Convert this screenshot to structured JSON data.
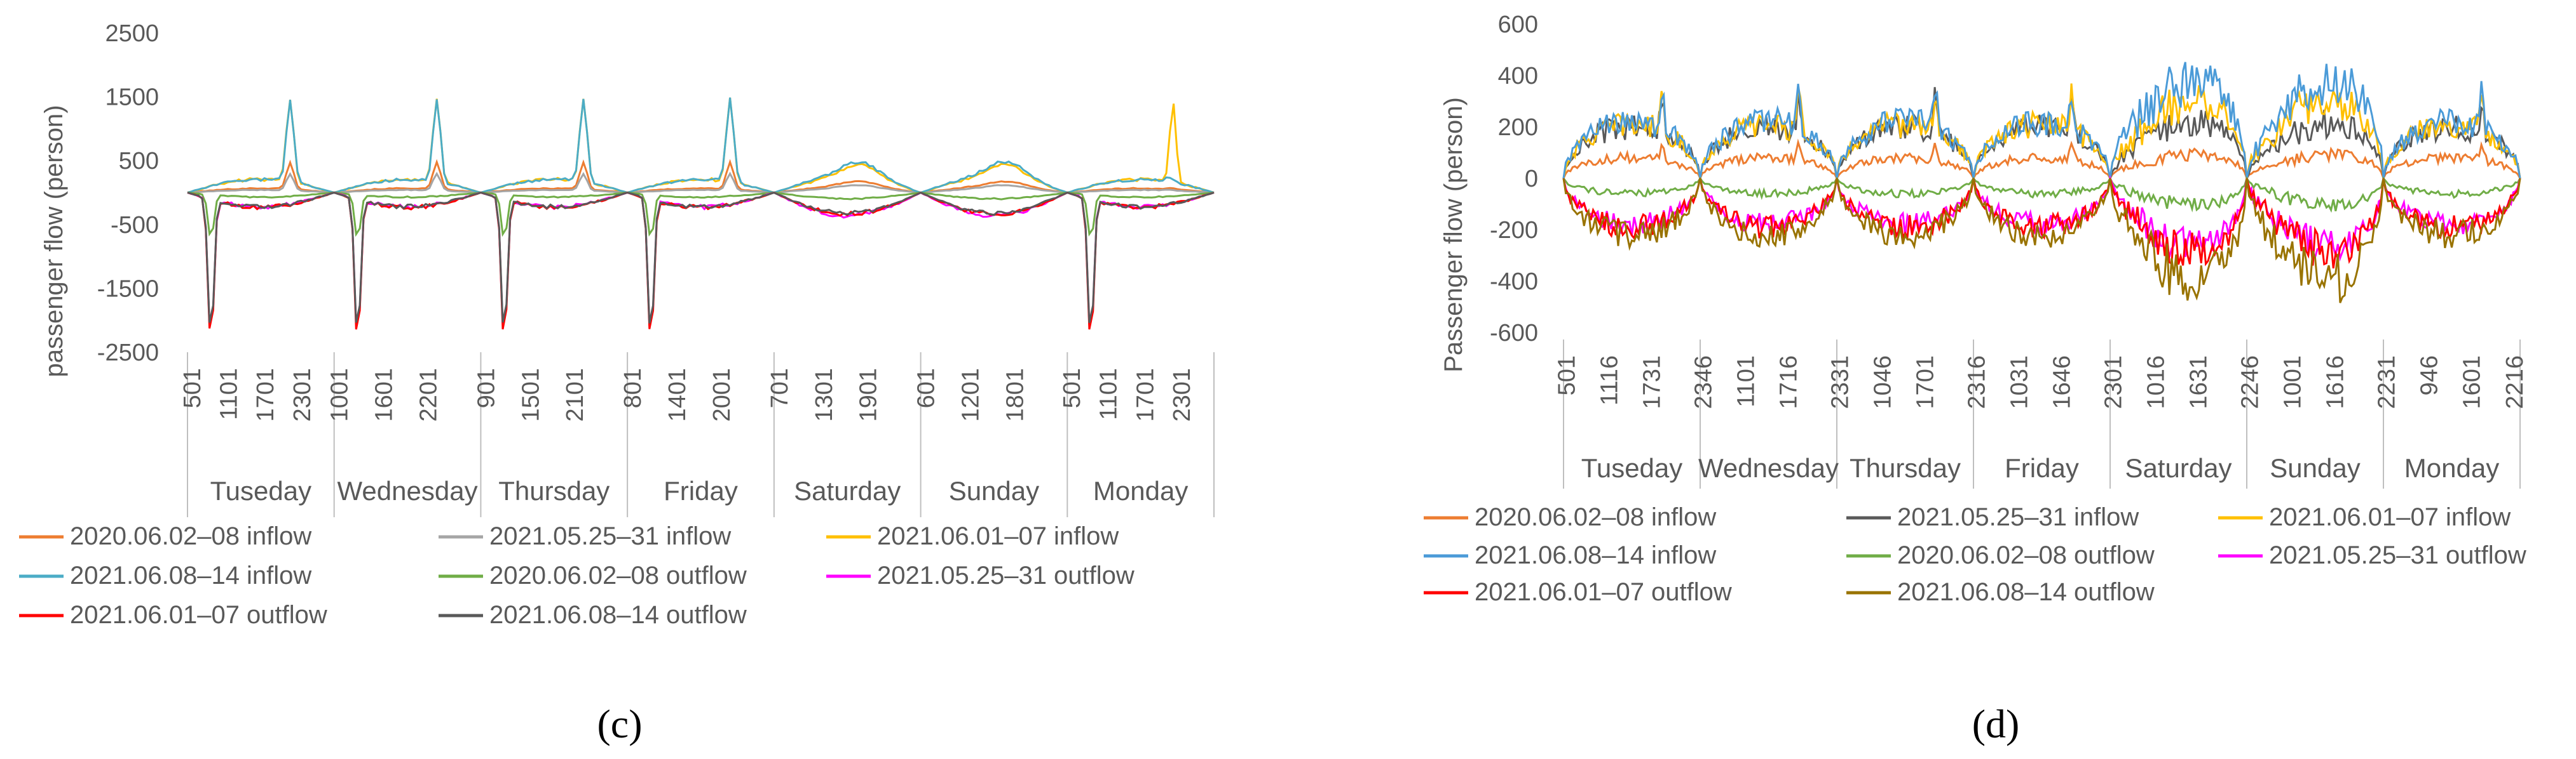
{
  "chart_data": [
    {
      "type": "line",
      "panel": "(c)",
      "ylabel": "passenger flow (person)",
      "xlabel": "",
      "ylim": [
        -2500,
        2500
      ],
      "yticks": [
        -2500,
        -1500,
        -500,
        500,
        1500,
        2500
      ],
      "days": [
        "Tuseday",
        "Wednesday",
        "Thursday",
        "Friday",
        "Saturday",
        "Sunday",
        "Monday"
      ],
      "day_ticks": [
        [
          "501",
          "1101",
          "1701",
          "2301"
        ],
        [
          "1001",
          "1601",
          "2201"
        ],
        [
          "901",
          "1501",
          "2101"
        ],
        [
          "801",
          "1401",
          "2001"
        ],
        [
          "701",
          "1301",
          "1901"
        ],
        [
          "601",
          "1201",
          "1801"
        ],
        [
          "501",
          "1101",
          "1701",
          "2301"
        ]
      ],
      "legend_position": "bottom",
      "series": [
        {
          "name": "2020.06.02–08 inflow",
          "color": "#ED7D31",
          "profile": "weekday_peak",
          "scale": 420,
          "weekend_scale": 180
        },
        {
          "name": "2021.05.25–31 inflow",
          "color": "#A5A5A5",
          "profile": "weekday_peak",
          "scale": 260,
          "weekend_scale": 120
        },
        {
          "name": "2021.06.01–07 inflow",
          "color": "#FFC000",
          "profile": "weekday_peak",
          "scale": 1300,
          "weekend_scale": 450,
          "monday_spike": 1250
        },
        {
          "name": "2021.06.08–14 inflow",
          "color": "#4BACC6",
          "profile": "weekday_peak",
          "scale": 1300,
          "weekend_scale": 500
        },
        {
          "name": "2020.06.02–08 outflow",
          "color": "#70AD47",
          "profile": "morning_trough",
          "scale": -700,
          "weekend_scale": -120
        },
        {
          "name": "2021.05.25–31 outflow",
          "color": "#FF00FF",
          "profile": "morning_trough",
          "scale": -2250,
          "weekend_scale": -450
        },
        {
          "name": "2021.06.01–07 outflow",
          "color": "#FF0000",
          "profile": "morning_trough",
          "scale": -2300,
          "weekend_scale": -420
        },
        {
          "name": "2021.06.08–14 outflow",
          "color": "#595959",
          "profile": "morning_trough",
          "scale": -2200,
          "weekend_scale": -400
        }
      ]
    },
    {
      "type": "line",
      "panel": "(d)",
      "ylabel": "Passenger flow (person)",
      "xlabel": "",
      "ylim": [
        -600,
        600
      ],
      "yticks": [
        -600,
        -400,
        -200,
        0,
        200,
        400,
        600
      ],
      "days": [
        "Tuseday",
        "Wednesday",
        "Thursday",
        "Friday",
        "Saturday",
        "Sunday",
        "Monday"
      ],
      "day_ticks": [
        [
          "501",
          "1116",
          "1731"
        ],
        [
          "2346",
          "1101",
          "1716"
        ],
        [
          "2331",
          "1046",
          "1701"
        ],
        [
          "2316",
          "1031",
          "1646"
        ],
        [
          "2301",
          "1016",
          "1631"
        ],
        [
          "2246",
          "1001",
          "1616"
        ],
        [
          "2231",
          "946",
          "1601",
          "2216"
        ]
      ],
      "legend_position": "bottom",
      "series": [
        {
          "name": "2020.06.02–08 inflow",
          "color": "#ED7D31",
          "scale": 80,
          "weekend_scale": 100
        },
        {
          "name": "2021.05.25–31 inflow",
          "color": "#595959",
          "scale": 200,
          "weekend_scale": 230
        },
        {
          "name": "2021.06.01–07 inflow",
          "color": "#FFC000",
          "scale": 210,
          "weekend_scale": 320
        },
        {
          "name": "2021.06.08–14 inflow",
          "color": "#4B9BD8",
          "scale": 220,
          "weekend_scale": 400
        },
        {
          "name": "2020.06.02–08 outflow",
          "color": "#70AD47",
          "scale": -60,
          "weekend_scale": -110
        },
        {
          "name": "2021.05.25–31 outflow",
          "color": "#FF00FF",
          "scale": -180,
          "weekend_scale": -280
        },
        {
          "name": "2021.06.01–07 outflow",
          "color": "#FF0000",
          "scale": -190,
          "weekend_scale": -300
        },
        {
          "name": "2021.06.08–14 outflow",
          "color": "#997300",
          "scale": -220,
          "weekend_scale": -420
        }
      ]
    }
  ]
}
